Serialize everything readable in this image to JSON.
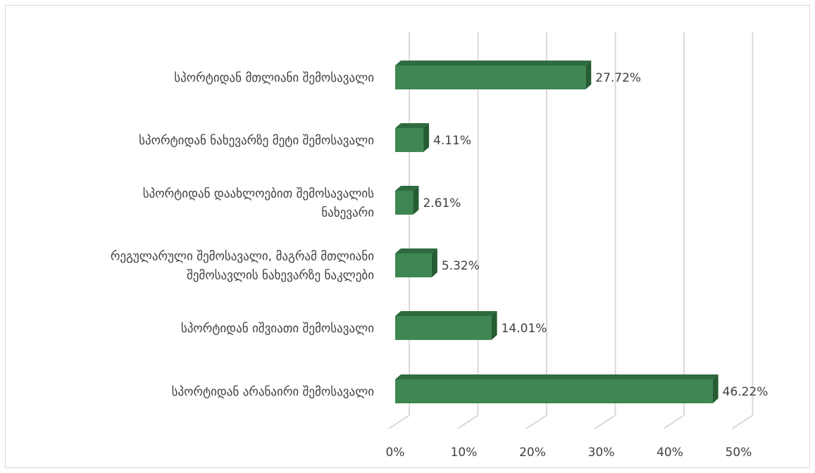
{
  "chart_data": {
    "type": "bar",
    "orientation": "horizontal",
    "style": "3d",
    "categories": [
      [
        "სპორტიდან  მთლიანი შემოსავალი"
      ],
      [
        "სპორტიდან ნახევარზე მეტი  შემოსავალი"
      ],
      [
        "სპორტიდან  დაახლოებით შემოსავალის",
        "ნახევარი"
      ],
      [
        "რეგულარული  შემოსავალი, მაგრამ მთლიანი",
        "შემოსავლის ნახევარზე ნაკლები"
      ],
      [
        "სპორტიდან იშვიათი შემოსავალი"
      ],
      [
        "სპორტიდან არანაირი შემოსავალი"
      ]
    ],
    "values": [
      27.72,
      4.11,
      2.61,
      5.32,
      14.01,
      46.22
    ],
    "value_labels": [
      "27.72%",
      "4.11%",
      "2.61%",
      "5.32%",
      "14.01%",
      "46.22%"
    ],
    "x_ticks": [
      0,
      10,
      20,
      30,
      40,
      50
    ],
    "x_tick_labels": [
      "0%",
      "10%",
      "20%",
      "30%",
      "40%",
      "50%"
    ],
    "xlim": [
      0,
      50
    ],
    "grid": true,
    "legend": "none",
    "colors": {
      "bar_front": "#3f8752",
      "bar_top": "#2e6b3e",
      "bar_side": "#255c33",
      "grid": "#d9d9d9",
      "text": "#404040"
    }
  }
}
